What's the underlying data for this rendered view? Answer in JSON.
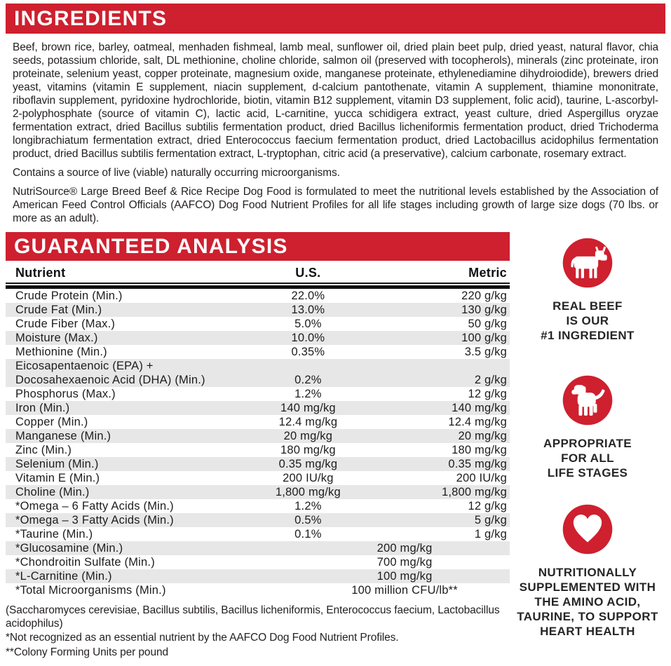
{
  "colors": {
    "red": "#ce202f",
    "stripe": "#e7e7e7",
    "text": "#231f20"
  },
  "ingredients": {
    "title": "INGREDIENTS",
    "body": "Beef, brown rice, barley, oatmeal, menhaden fishmeal, lamb meal, sunflower oil, dried plain beet pulp, dried yeast, natural flavor, chia seeds, potassium chloride, salt, DL methionine, choline chloride, salmon oil (preserved with tocopherols), minerals (zinc proteinate, iron proteinate, selenium yeast, copper proteinate, magnesium oxide, manganese proteinate, ethylenediamine dihydroiodide), brewers dried yeast, vitamins (vitamin E supplement, niacin supplement, d-calcium pantothenate, vitamin A supplement, thiamine mononitrate, riboflavin supplement, pyridoxine hydrochloride, biotin, vitamin B12 supplement, vitamin D3 supplement, folic acid), taurine, L-ascorbyl-2-polyphosphate (source of vitamin C), lactic acid, L-carnitine, yucca schidigera extract, yeast culture, dried Aspergillus oryzae fermentation extract, dried Bacillus subtilis fermentation product, dried Bacillus licheniformis fermentation product, dried Trichoderma longibrachiatum fermentation extract, dried Enterococcus faecium fermentation product, dried Lactobacillus acidophilus fermentation product, dried Bacillus subtilis fermentation extract, L-tryptophan, citric acid (a preservative), calcium carbonate, rosemary extract.",
    "contains_note": "Contains a source of live (viable) naturally occurring microorganisms.",
    "aafco_statement": "NutriSource® Large Breed Beef & Rice Recipe Dog Food is formulated to meet the nutritional levels established by the Association of American Feed Control Officials (AAFCO) Dog Food Nutrient Profiles for all life stages including growth of large size dogs (70 lbs. or more as an adult)."
  },
  "guaranteed_analysis": {
    "title": "GUARANTEED ANALYSIS",
    "columns": [
      "Nutrient",
      "U.S.",
      "Metric"
    ],
    "rows": [
      {
        "nutrient": "Crude Protein (Min.)",
        "us": "22.0%",
        "metric": "220 g/kg"
      },
      {
        "nutrient": "Crude Fat (Min.)",
        "us": "13.0%",
        "metric": "130 g/kg"
      },
      {
        "nutrient": "Crude Fiber (Max.)",
        "us": "5.0%",
        "metric": "50 g/kg"
      },
      {
        "nutrient": "Moisture (Max.)",
        "us": "10.0%",
        "metric": "100 g/kg"
      },
      {
        "nutrient": "Methionine (Min.)",
        "us": "0.35%",
        "metric": "3.5 g/kg"
      },
      {
        "nutrient_lines": [
          "Eicosapentaenoic (EPA) +",
          "Docosahexaenoic Acid (DHA) (Min.)"
        ],
        "us": "0.2%",
        "metric": "2 g/kg"
      },
      {
        "nutrient": "Phosphorus (Max.)",
        "us": "1.2%",
        "metric": "12 g/kg"
      },
      {
        "nutrient": "Iron (Min.)",
        "us": "140 mg/kg",
        "metric": "140 mg/kg"
      },
      {
        "nutrient": "Copper (Min.)",
        "us": "12.4 mg/kg",
        "metric": "12.4 mg/kg"
      },
      {
        "nutrient": "Manganese (Min.)",
        "us": "20 mg/kg",
        "metric": "20 mg/kg"
      },
      {
        "nutrient": "Zinc (Min.)",
        "us": "180 mg/kg",
        "metric": "180 mg/kg"
      },
      {
        "nutrient": "Selenium (Min.)",
        "us": "0.35 mg/kg",
        "metric": "0.35 mg/kg"
      },
      {
        "nutrient": "Vitamin E (Min.)",
        "us": "200 IU/kg",
        "metric": "200 IU/kg"
      },
      {
        "nutrient": "Choline (Min.)",
        "us": "1,800 mg/kg",
        "metric": "1,800 mg/kg"
      },
      {
        "nutrient": "*Omega – 6 Fatty Acids (Min.)",
        "us": "1.2%",
        "metric": "12 g/kg"
      },
      {
        "nutrient": "*Omega – 3 Fatty Acids (Min.)",
        "us": "0.5%",
        "metric": "5 g/kg"
      },
      {
        "nutrient": "*Taurine (Min.)",
        "us": "0.1%",
        "metric": "1 g/kg"
      },
      {
        "nutrient": "*Glucosamine (Min.)",
        "span_value": "200 mg/kg"
      },
      {
        "nutrient": "*Chondroitin Sulfate (Min.)",
        "span_value": "700 mg/kg"
      },
      {
        "nutrient": "*L-Carnitine (Min.)",
        "span_value": "100 mg/kg"
      },
      {
        "nutrient": "*Total Microorganisms (Min.)",
        "span_value": "100 million CFU/lb**"
      }
    ],
    "footnotes": [
      "(Saccharomyces cerevisiae, Bacillus subtilis, Bacillus licheniformis, Enterococcus faecium, Lactobacillus acidophilus)",
      "*Not recognized as an essential nutrient by the AAFCO Dog Food Nutrient Profiles.",
      "**Colony Forming Units per pound"
    ]
  },
  "badges": [
    {
      "id": "real-beef",
      "icon": "cow-icon",
      "caption_lines": [
        "REAL BEEF",
        "IS OUR",
        "#1 INGREDIENT"
      ]
    },
    {
      "id": "life-stages",
      "icon": "puppy-icon",
      "caption_lines": [
        "APPROPRIATE",
        "FOR ALL",
        "LIFE STAGES"
      ]
    },
    {
      "id": "heart-health",
      "icon": "heart-icon",
      "caption_lines": [
        "NUTRITIONALLY",
        "SUPPLEMENTED WITH",
        "THE AMINO ACID,",
        "TAURINE, TO SUPPORT",
        "HEART HEALTH"
      ]
    }
  ]
}
